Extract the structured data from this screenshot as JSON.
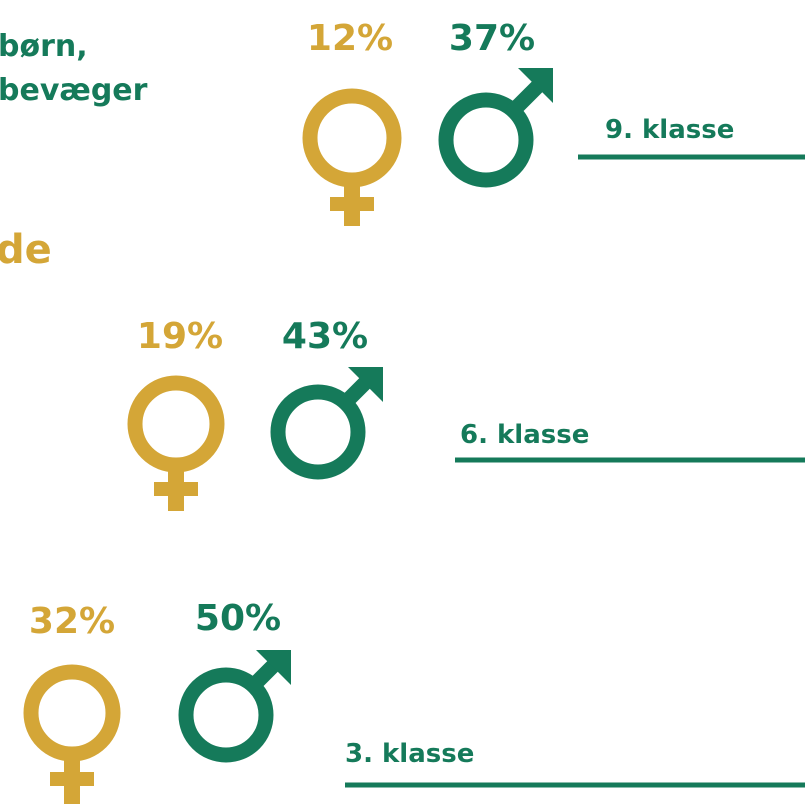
{
  "intro": {
    "line1": "børn,",
    "line2": "bevæger",
    "line3": "de"
  },
  "groups": [
    {
      "label": "9. klasse",
      "girls": "12%",
      "boys": "37%"
    },
    {
      "label": "6. klasse",
      "girls": "19%",
      "boys": "43%"
    },
    {
      "label": "3. klasse",
      "girls": "32%",
      "boys": "50%"
    }
  ]
}
